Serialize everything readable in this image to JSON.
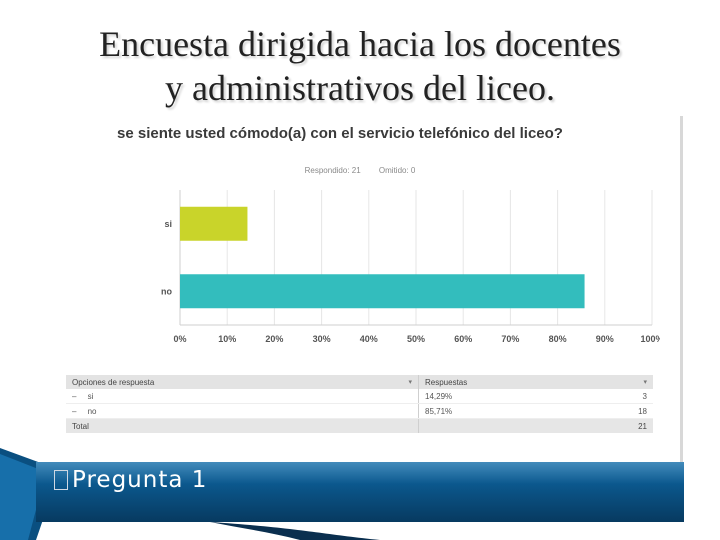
{
  "slide": {
    "title_line1": "Encuesta dirigida hacia los docentes",
    "title_line2": "y administrativos del liceo.",
    "bullet": "Pregunta 1"
  },
  "colors": {
    "si": "#c9d42a",
    "no": "#33bdbd",
    "bar_bg": "#0b5a92"
  },
  "chart_data": {
    "type": "bar",
    "orientation": "horizontal",
    "title": "se siente usted cómodo(a) con el servicio telefónico del liceo?",
    "respondido_label": "Respondido: 21",
    "omitido_label": "Omitido: 0",
    "categories": [
      "si",
      "no"
    ],
    "values": [
      14.29,
      85.71
    ],
    "xlim": [
      0,
      100
    ],
    "x_ticks": [
      "0%",
      "10%",
      "20%",
      "30%",
      "40%",
      "50%",
      "60%",
      "70%",
      "80%",
      "90%",
      "100%"
    ],
    "grid": true
  },
  "table": {
    "header_option": "Opciones de respuesta",
    "header_responses": "Respuestas",
    "rows": [
      {
        "bullet": "–",
        "option": "si",
        "percent": "14,29%",
        "count": "3"
      },
      {
        "bullet": "–",
        "option": "no",
        "percent": "85,71%",
        "count": "18"
      }
    ],
    "total_label": "Total",
    "total_count": "21"
  }
}
